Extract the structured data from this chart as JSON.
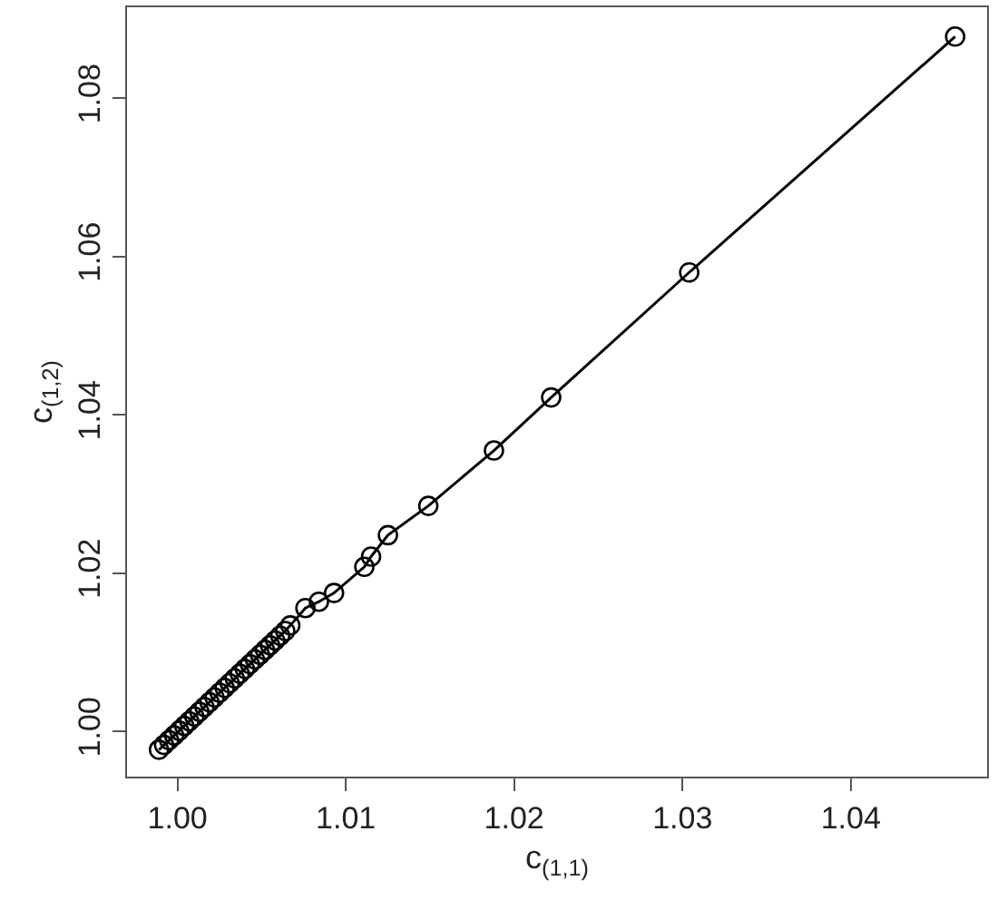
{
  "chart_data": {
    "type": "line",
    "xlabel": "c$_{(1,1)}$",
    "ylabel": "c$_{(1,2)}$",
    "x": [
      0.9989,
      0.9992,
      0.9995,
      0.9998,
      1.0001,
      1.0004,
      1.0007,
      1.001,
      1.0013,
      1.0016,
      1.0019,
      1.0022,
      1.0025,
      1.0028,
      1.0031,
      1.0034,
      1.0037,
      1.004,
      1.0043,
      1.0046,
      1.0049,
      1.0052,
      1.0055,
      1.0058,
      1.0061,
      1.0064,
      1.0067,
      1.0076,
      1.0084,
      1.0093,
      1.0111,
      1.0115,
      1.0125,
      1.0149,
      1.0188,
      1.0222,
      1.0304,
      1.0462
    ],
    "series": [
      {
        "color": "#000000",
        "values": [
          0.9977,
          0.9983,
          0.9989,
          0.9995,
          1.0001,
          1.0007,
          1.0013,
          1.0019,
          1.0025,
          1.0031,
          1.0037,
          1.0043,
          1.0049,
          1.0055,
          1.0061,
          1.0067,
          1.0073,
          1.0079,
          1.0085,
          1.0091,
          1.0097,
          1.0103,
          1.0109,
          1.0115,
          1.0121,
          1.0127,
          1.0134,
          1.0156,
          1.0164,
          1.0175,
          1.0208,
          1.0221,
          1.0248,
          1.0285,
          1.0355,
          1.0422,
          1.058,
          1.0878
        ]
      }
    ],
    "marker": "circle",
    "line_style": "solid",
    "xlim": [
      0.997,
      1.0481
    ],
    "ylim": [
      0.9943,
      1.0915
    ],
    "xticks": [
      {
        "value": 1.0,
        "label": "1.00"
      },
      {
        "value": 1.01,
        "label": "1.01"
      },
      {
        "value": 1.02,
        "label": "1.02"
      },
      {
        "value": 1.03,
        "label": "1.03"
      },
      {
        "value": 1.04,
        "label": "1.04"
      }
    ],
    "yticks": [
      {
        "value": 1.0,
        "label": "1.00"
      },
      {
        "value": 1.02,
        "label": "1.02"
      },
      {
        "value": 1.04,
        "label": "1.04"
      },
      {
        "value": 1.06,
        "label": "1.06"
      },
      {
        "value": 1.08,
        "label": "1.08"
      }
    ]
  }
}
